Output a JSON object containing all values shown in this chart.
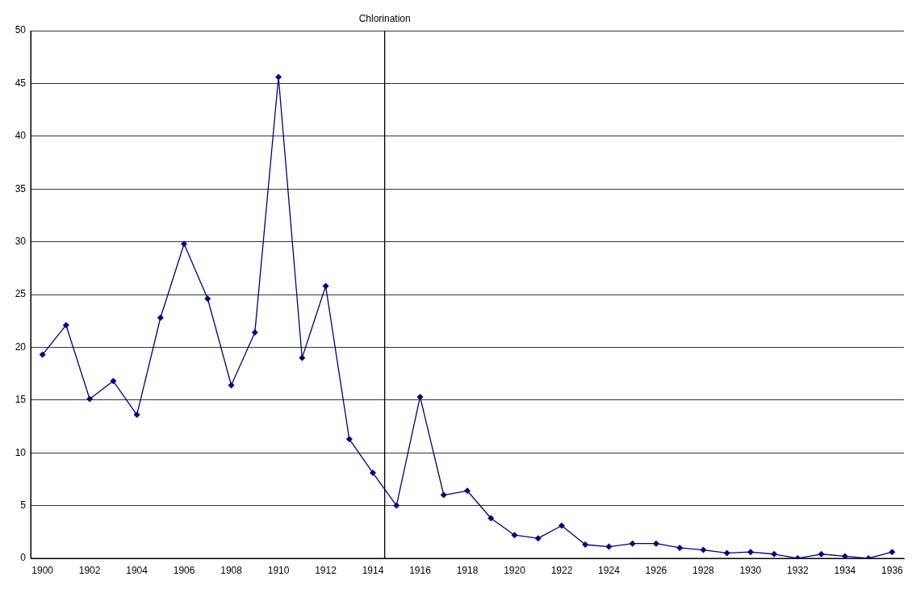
{
  "chart_data": {
    "type": "line",
    "x": [
      1900,
      1901,
      1902,
      1903,
      1904,
      1905,
      1906,
      1907,
      1908,
      1909,
      1910,
      1911,
      1912,
      1913,
      1914,
      1915,
      1916,
      1917,
      1918,
      1919,
      1920,
      1921,
      1922,
      1923,
      1924,
      1925,
      1926,
      1927,
      1928,
      1929,
      1930,
      1931,
      1932,
      1933,
      1934,
      1935,
      1936
    ],
    "series": [
      {
        "color": "#000080",
        "values": [
          19.3,
          22.1,
          15.1,
          16.8,
          13.6,
          22.8,
          29.8,
          24.6,
          16.4,
          21.4,
          45.6,
          19.0,
          25.8,
          11.3,
          8.1,
          5.0,
          15.3,
          6.0,
          6.4,
          3.8,
          2.2,
          1.9,
          3.1,
          1.3,
          1.1,
          1.4,
          1.4,
          1.0,
          0.8,
          0.5,
          0.6,
          0.4,
          0,
          0.4,
          0.2,
          0,
          0.6
        ]
      }
    ],
    "xlim": [
      1899.5,
      1936.5
    ],
    "xticks": [
      1900,
      1902,
      1904,
      1906,
      1908,
      1910,
      1912,
      1914,
      1916,
      1918,
      1920,
      1922,
      1924,
      1926,
      1928,
      1930,
      1932,
      1934,
      1936
    ],
    "ylim": [
      0,
      50
    ],
    "yticks": [
      0,
      5,
      10,
      15,
      20,
      25,
      30,
      35,
      40,
      45,
      50
    ],
    "ref_lines": [
      {
        "axis": "x",
        "value": 1914.5,
        "label": "Chlorination",
        "color": "#000000"
      }
    ],
    "grid": "y",
    "legend": false,
    "marker": "diamond",
    "line_style": "solid"
  }
}
